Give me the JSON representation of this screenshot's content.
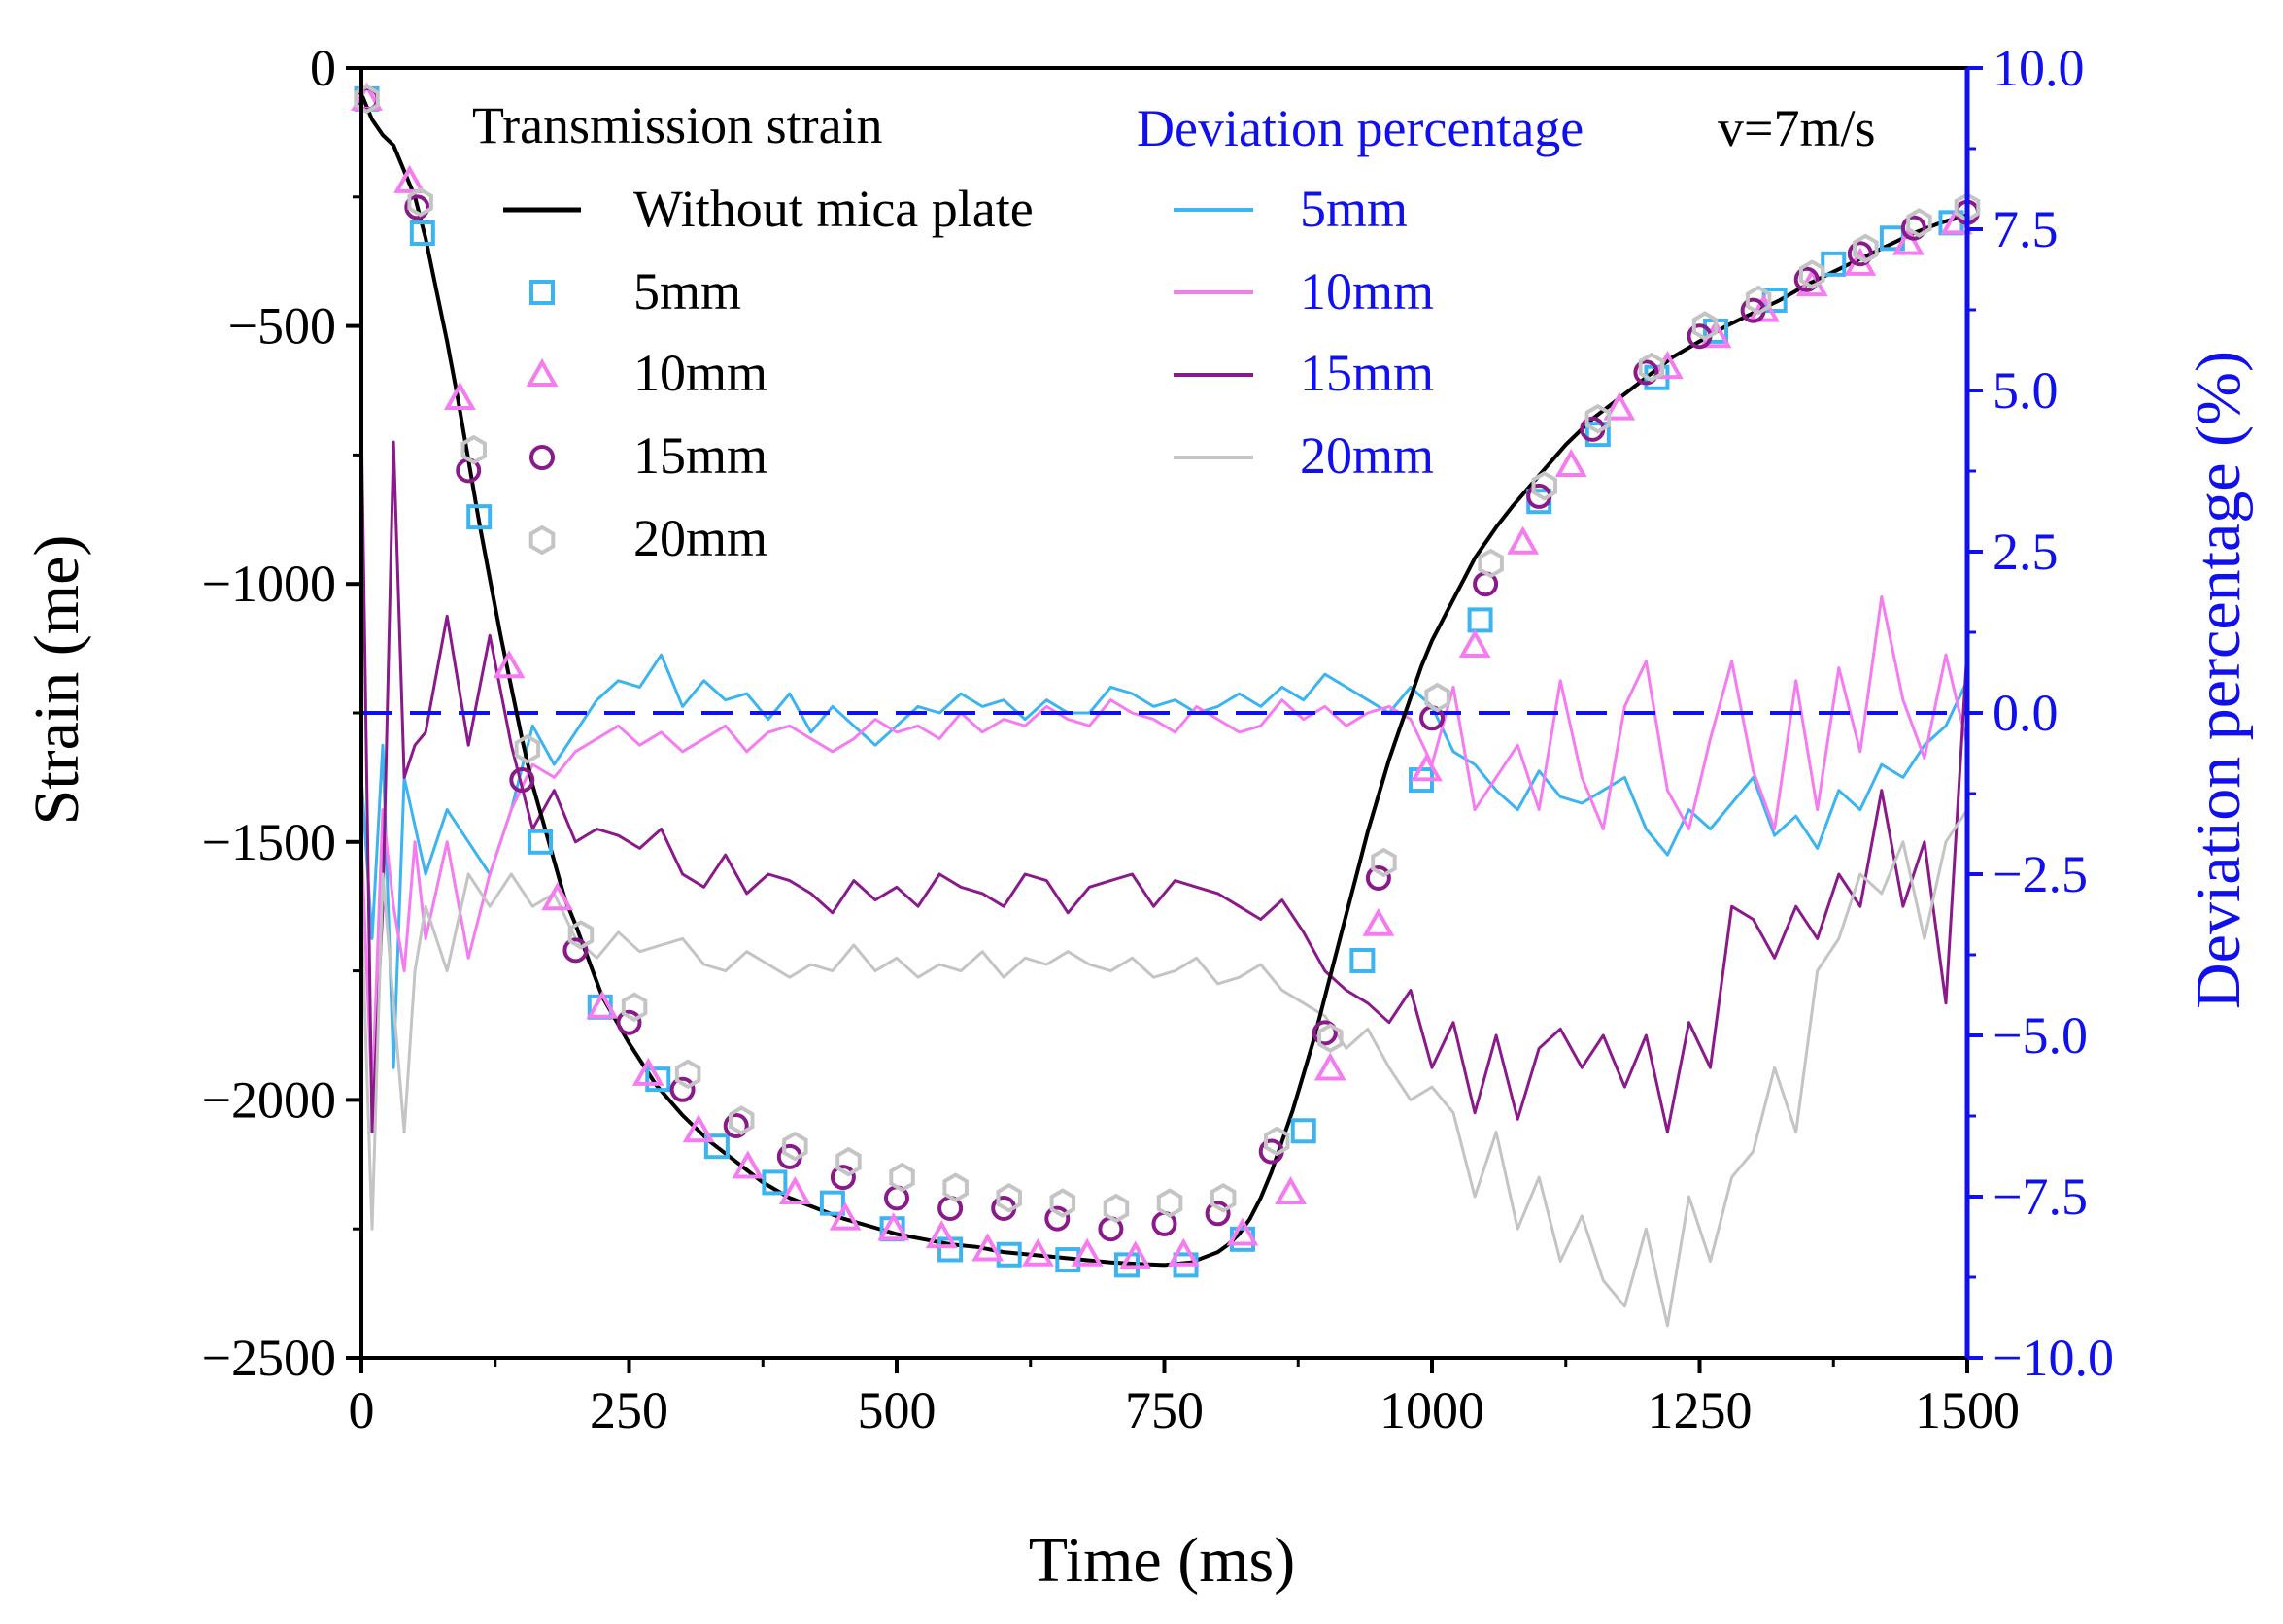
{
  "colors": {
    "without": "#000000",
    "d5": "#3cb4f0",
    "d10": "#f57cf0",
    "d15": "#8a1a8a",
    "d20": "#c4c4c4",
    "right_axis": "#1010ee",
    "zero_line": "#1010ee"
  },
  "chart_data": {
    "type": "line",
    "xlabel": "Time (ms)",
    "ylabel_left": "Strain (me)",
    "ylabel_right": "Deviation percentage (%)",
    "xlim": [
      0,
      1500
    ],
    "ylim_left": [
      -2500,
      0
    ],
    "ylim_right": [
      -10,
      10
    ],
    "x_ticks": [
      0,
      250,
      500,
      750,
      1000,
      1250,
      1500
    ],
    "x_tick_labels": [
      "0",
      "250",
      "500",
      "750",
      "1000",
      "1250",
      "1500"
    ],
    "y_left_ticks": [
      0,
      -500,
      -1000,
      -1500,
      -2000,
      -2500
    ],
    "y_left_tick_labels": [
      "0",
      "−500",
      "−1000",
      "−1500",
      "−2000",
      "−2500"
    ],
    "y_right_ticks": [
      10,
      7.5,
      5,
      2.5,
      0,
      -2.5,
      -5,
      -7.5,
      -10
    ],
    "y_right_tick_labels": [
      "10.0",
      "7.5",
      "5.0",
      "2.5",
      "0.0",
      "−2.5",
      "−5.0",
      "−7.5",
      "−10.0"
    ],
    "legend": {
      "strain_title": "Transmission strain",
      "deviation_title": "Deviation percentage",
      "condition": "v=7m/s",
      "strain_entries": [
        "Without mica plate",
        "5mm",
        "10mm",
        "15mm",
        "20mm"
      ],
      "deviation_entries": [
        "5mm",
        "10mm",
        "15mm",
        "20mm"
      ]
    },
    "strain_curve": {
      "name": "Without mica plate",
      "x": [
        0,
        10,
        20,
        30,
        40,
        50,
        60,
        70,
        80,
        90,
        100,
        110,
        120,
        130,
        140,
        150,
        160,
        175,
        190,
        200,
        225,
        250,
        275,
        300,
        325,
        350,
        375,
        400,
        425,
        450,
        475,
        500,
        525,
        550,
        575,
        600,
        625,
        650,
        675,
        700,
        725,
        750,
        775,
        800,
        810,
        820,
        830,
        840,
        850,
        860,
        870,
        880,
        890,
        900,
        910,
        920,
        930,
        940,
        950,
        960,
        970,
        980,
        990,
        1000,
        1010,
        1020,
        1030,
        1040,
        1050,
        1060,
        1075,
        1100,
        1125,
        1150,
        1175,
        1200,
        1225,
        1250,
        1275,
        1300,
        1325,
        1350,
        1375,
        1400,
        1425,
        1450,
        1475,
        1500
      ],
      "y": [
        -50,
        -100,
        -130,
        -150,
        -200,
        -250,
        -330,
        -430,
        -530,
        -640,
        -760,
        -880,
        -990,
        -1100,
        -1200,
        -1300,
        -1390,
        -1500,
        -1610,
        -1660,
        -1800,
        -1890,
        -1970,
        -2030,
        -2080,
        -2120,
        -2160,
        -2190,
        -2210,
        -2230,
        -2245,
        -2260,
        -2270,
        -2280,
        -2285,
        -2295,
        -2300,
        -2305,
        -2310,
        -2315,
        -2318,
        -2320,
        -2315,
        -2295,
        -2280,
        -2260,
        -2230,
        -2190,
        -2140,
        -2080,
        -2020,
        -1950,
        -1880,
        -1800,
        -1720,
        -1640,
        -1560,
        -1480,
        -1410,
        -1340,
        -1280,
        -1220,
        -1160,
        -1110,
        -1070,
        -1030,
        -990,
        -950,
        -920,
        -890,
        -850,
        -790,
        -730,
        -680,
        -640,
        -600,
        -560,
        -530,
        -500,
        -475,
        -450,
        -420,
        -395,
        -370,
        -345,
        -320,
        -300,
        -285
      ]
    },
    "markers": [
      {
        "name": "5mm",
        "shape": "square",
        "x": [
          5,
          57,
          110,
          167,
          223,
          277,
          332,
          386,
          440,
          496,
          550,
          605,
          660,
          715,
          770,
          823,
          880,
          935,
          990,
          1045,
          1100,
          1155,
          1210,
          1265,
          1320,
          1375,
          1430,
          1485
        ],
        "y": [
          -60,
          -320,
          -870,
          -1500,
          -1820,
          -1960,
          -2090,
          -2160,
          -2200,
          -2250,
          -2290,
          -2300,
          -2310,
          -2320,
          -2320,
          -2270,
          -2060,
          -1730,
          -1380,
          -1070,
          -840,
          -710,
          -600,
          -510,
          -450,
          -380,
          -330,
          -300
        ]
      },
      {
        "name": "10mm",
        "shape": "triangle",
        "x": [
          5,
          45,
          92,
          138,
          183,
          225,
          268,
          315,
          361,
          405,
          452,
          497,
          542,
          585,
          632,
          678,
          723,
          768,
          823,
          868,
          905,
          950,
          995,
          1040,
          1085,
          1130,
          1175,
          1220,
          1265,
          1310,
          1355,
          1400,
          1445,
          1490
        ],
        "y": [
          -60,
          -220,
          -640,
          -1160,
          -1610,
          -1820,
          -1950,
          -2060,
          -2130,
          -2180,
          -2230,
          -2250,
          -2265,
          -2290,
          -2300,
          -2300,
          -2305,
          -2300,
          -2260,
          -2180,
          -1940,
          -1660,
          -1360,
          -1120,
          -920,
          -770,
          -660,
          -580,
          -520,
          -470,
          -420,
          -380,
          -340,
          -300
        ]
      },
      {
        "name": "15mm",
        "shape": "circle",
        "x": [
          5,
          52,
          100,
          150,
          200,
          250,
          300,
          350,
          400,
          450,
          500,
          550,
          600,
          650,
          700,
          750,
          800,
          850,
          900,
          950,
          1000,
          1050,
          1100,
          1150,
          1200,
          1250,
          1300,
          1350,
          1400,
          1450,
          1500
        ],
        "y": [
          -60,
          -270,
          -780,
          -1380,
          -1710,
          -1850,
          -1980,
          -2050,
          -2110,
          -2150,
          -2190,
          -2210,
          -2210,
          -2230,
          -2250,
          -2240,
          -2220,
          -2100,
          -1870,
          -1570,
          -1260,
          -1000,
          -830,
          -700,
          -590,
          -520,
          -470,
          -410,
          -360,
          -310,
          -280
        ]
      },
      {
        "name": "20mm",
        "shape": "hexagon",
        "x": [
          5,
          55,
          105,
          155,
          205,
          255,
          305,
          355,
          405,
          455,
          505,
          555,
          605,
          655,
          705,
          755,
          805,
          855,
          905,
          955,
          1005,
          1055,
          1105,
          1155,
          1205,
          1255,
          1305,
          1355,
          1405,
          1455,
          1500
        ],
        "y": [
          -60,
          -260,
          -740,
          -1320,
          -1680,
          -1820,
          -1950,
          -2040,
          -2090,
          -2120,
          -2150,
          -2170,
          -2190,
          -2200,
          -2210,
          -2200,
          -2190,
          -2080,
          -1880,
          -1540,
          -1220,
          -960,
          -810,
          -680,
          -580,
          -500,
          -450,
          -400,
          -350,
          -300,
          -270
        ]
      }
    ],
    "deviation_series": [
      {
        "name": "5mm",
        "x": [
          0,
          10,
          20,
          30,
          40,
          60,
          80,
          100,
          120,
          140,
          160,
          180,
          200,
          220,
          240,
          260,
          280,
          300,
          320,
          340,
          360,
          380,
          400,
          420,
          440,
          460,
          480,
          500,
          520,
          540,
          560,
          580,
          600,
          620,
          640,
          660,
          680,
          700,
          720,
          740,
          760,
          780,
          800,
          820,
          840,
          860,
          880,
          900,
          920,
          940,
          960,
          980,
          1000,
          1020,
          1040,
          1060,
          1080,
          1100,
          1120,
          1140,
          1160,
          1180,
          1200,
          1220,
          1240,
          1260,
          1280,
          1300,
          1320,
          1340,
          1360,
          1380,
          1400,
          1420,
          1440,
          1460,
          1480,
          1500
        ],
        "y": [
          -1.0,
          -3.5,
          -0.5,
          -5.5,
          -1.0,
          -2.5,
          -1.5,
          -2.0,
          -2.5,
          -1.5,
          -0.2,
          -0.8,
          -0.3,
          0.2,
          0.5,
          0.4,
          0.9,
          0.1,
          0.5,
          0.2,
          0.3,
          -0.1,
          0.3,
          -0.3,
          0.1,
          -0.2,
          -0.5,
          -0.2,
          0.1,
          0.0,
          0.3,
          0.1,
          0.2,
          -0.1,
          0.2,
          0.0,
          0.0,
          0.4,
          0.3,
          0.1,
          0.2,
          0.0,
          0.1,
          0.3,
          0.1,
          0.4,
          0.2,
          0.6,
          0.4,
          0.2,
          0.0,
          0.4,
          0.1,
          -0.6,
          -0.8,
          -1.2,
          -1.5,
          -0.9,
          -1.3,
          -1.4,
          -1.2,
          -1.0,
          -1.8,
          -2.2,
          -1.5,
          -1.8,
          -1.4,
          -1.0,
          -1.9,
          -1.6,
          -2.1,
          -1.2,
          -1.5,
          -0.8,
          -1.0,
          -0.5,
          -0.2,
          0.5
        ]
      },
      {
        "name": "10mm",
        "x": [
          0,
          10,
          20,
          30,
          40,
          50,
          60,
          80,
          100,
          120,
          140,
          160,
          180,
          200,
          220,
          240,
          260,
          280,
          300,
          320,
          340,
          360,
          380,
          400,
          420,
          440,
          460,
          480,
          500,
          520,
          540,
          560,
          580,
          600,
          620,
          640,
          660,
          680,
          700,
          720,
          740,
          760,
          780,
          800,
          820,
          840,
          860,
          880,
          900,
          920,
          940,
          960,
          980,
          1000,
          1020,
          1040,
          1060,
          1080,
          1100,
          1120,
          1140,
          1160,
          1180,
          1200,
          1220,
          1240,
          1260,
          1280,
          1300,
          1320,
          1340,
          1360,
          1380,
          1400,
          1420,
          1440,
          1460,
          1480,
          1500
        ],
        "y": [
          -2.0,
          -6.0,
          -1.5,
          -3.0,
          -4.0,
          -2.0,
          -3.5,
          -2.0,
          -3.8,
          -2.5,
          -1.5,
          -0.8,
          -1.0,
          -0.6,
          -0.4,
          -0.2,
          -0.5,
          -0.3,
          -0.6,
          -0.4,
          -0.2,
          -0.6,
          -0.3,
          -0.2,
          -0.4,
          -0.6,
          -0.4,
          -0.1,
          -0.3,
          -0.2,
          -0.4,
          0.0,
          -0.3,
          -0.1,
          -0.2,
          0.1,
          -0.1,
          -0.2,
          0.2,
          0.0,
          -0.1,
          -0.3,
          0.1,
          -0.1,
          -0.3,
          -0.2,
          0.2,
          -0.1,
          0.1,
          -0.2,
          0.0,
          0.1,
          -0.1,
          -0.8,
          0.4,
          -1.5,
          -1.0,
          -0.5,
          -1.5,
          0.5,
          -1.0,
          -1.8,
          0.1,
          0.8,
          -1.2,
          -1.8,
          -0.4,
          0.8,
          -0.9,
          -1.8,
          0.5,
          -1.5,
          0.7,
          -0.6,
          1.8,
          0.2,
          -0.7,
          0.9,
          -0.5
        ]
      },
      {
        "name": "15mm",
        "x": [
          0,
          10,
          20,
          30,
          40,
          50,
          60,
          80,
          100,
          120,
          140,
          160,
          180,
          200,
          220,
          240,
          260,
          280,
          300,
          320,
          340,
          360,
          380,
          400,
          420,
          440,
          460,
          480,
          500,
          520,
          540,
          560,
          580,
          600,
          620,
          640,
          660,
          680,
          700,
          720,
          740,
          760,
          780,
          800,
          820,
          840,
          860,
          880,
          900,
          920,
          940,
          960,
          980,
          1000,
          1020,
          1040,
          1060,
          1080,
          1100,
          1120,
          1140,
          1160,
          1180,
          1200,
          1220,
          1240,
          1260,
          1280,
          1300,
          1320,
          1340,
          1360,
          1380,
          1400,
          1420,
          1440,
          1460,
          1480,
          1500
        ],
        "y": [
          4.5,
          -6.5,
          -3.0,
          4.2,
          -1.0,
          -0.5,
          -0.3,
          1.5,
          -0.5,
          1.2,
          -0.5,
          -1.8,
          -1.2,
          -2.0,
          -1.8,
          -1.9,
          -2.1,
          -1.8,
          -2.5,
          -2.7,
          -2.2,
          -2.8,
          -2.5,
          -2.6,
          -2.8,
          -3.1,
          -2.6,
          -2.9,
          -2.7,
          -3.0,
          -2.5,
          -2.7,
          -2.8,
          -3.0,
          -2.5,
          -2.6,
          -3.1,
          -2.7,
          -2.6,
          -2.5,
          -3.0,
          -2.6,
          -2.7,
          -2.8,
          -3.0,
          -3.2,
          -2.9,
          -3.4,
          -4.0,
          -4.3,
          -4.5,
          -4.8,
          -4.3,
          -5.5,
          -4.8,
          -6.2,
          -5.0,
          -6.3,
          -5.2,
          -4.9,
          -5.5,
          -5.0,
          -5.8,
          -5.0,
          -6.5,
          -4.8,
          -5.5,
          -3.0,
          -3.2,
          -3.8,
          -3.0,
          -3.5,
          -2.5,
          -3.0,
          -1.2,
          -3.0,
          -2.0,
          -4.5,
          1.0
        ]
      },
      {
        "name": "20mm",
        "x": [
          0,
          10,
          20,
          30,
          40,
          50,
          60,
          80,
          100,
          120,
          140,
          160,
          180,
          200,
          220,
          240,
          260,
          280,
          300,
          320,
          340,
          360,
          380,
          400,
          420,
          440,
          460,
          480,
          500,
          520,
          540,
          560,
          580,
          600,
          620,
          640,
          660,
          680,
          700,
          720,
          740,
          760,
          780,
          800,
          820,
          840,
          860,
          880,
          900,
          920,
          940,
          960,
          980,
          1000,
          1020,
          1040,
          1060,
          1080,
          1100,
          1120,
          1140,
          1160,
          1180,
          1200,
          1220,
          1240,
          1260,
          1280,
          1300,
          1320,
          1340,
          1360,
          1380,
          1400,
          1420,
          1440,
          1460,
          1480,
          1500
        ],
        "y": [
          -3.0,
          -8.0,
          -2.5,
          -4.5,
          -6.5,
          -4.0,
          -3.0,
          -4.0,
          -2.5,
          -3.0,
          -2.5,
          -3.0,
          -2.8,
          -3.5,
          -3.8,
          -3.4,
          -3.7,
          -3.6,
          -3.5,
          -3.9,
          -4.0,
          -3.7,
          -3.9,
          -4.1,
          -3.9,
          -4.0,
          -3.6,
          -4.0,
          -3.8,
          -4.1,
          -3.9,
          -4.0,
          -3.7,
          -4.1,
          -3.8,
          -3.9,
          -3.7,
          -3.9,
          -4.0,
          -3.8,
          -4.1,
          -4.0,
          -3.8,
          -4.2,
          -4.1,
          -3.9,
          -4.3,
          -4.5,
          -4.7,
          -5.2,
          -4.9,
          -5.5,
          -6.0,
          -5.8,
          -6.2,
          -7.5,
          -6.5,
          -8.0,
          -7.2,
          -8.5,
          -7.8,
          -8.8,
          -9.2,
          -8.0,
          -9.5,
          -7.5,
          -8.5,
          -7.2,
          -6.8,
          -5.5,
          -6.5,
          -4.0,
          -3.5,
          -2.5,
          -2.8,
          -2.0,
          -3.5,
          -2.0,
          -1.5
        ]
      }
    ]
  }
}
